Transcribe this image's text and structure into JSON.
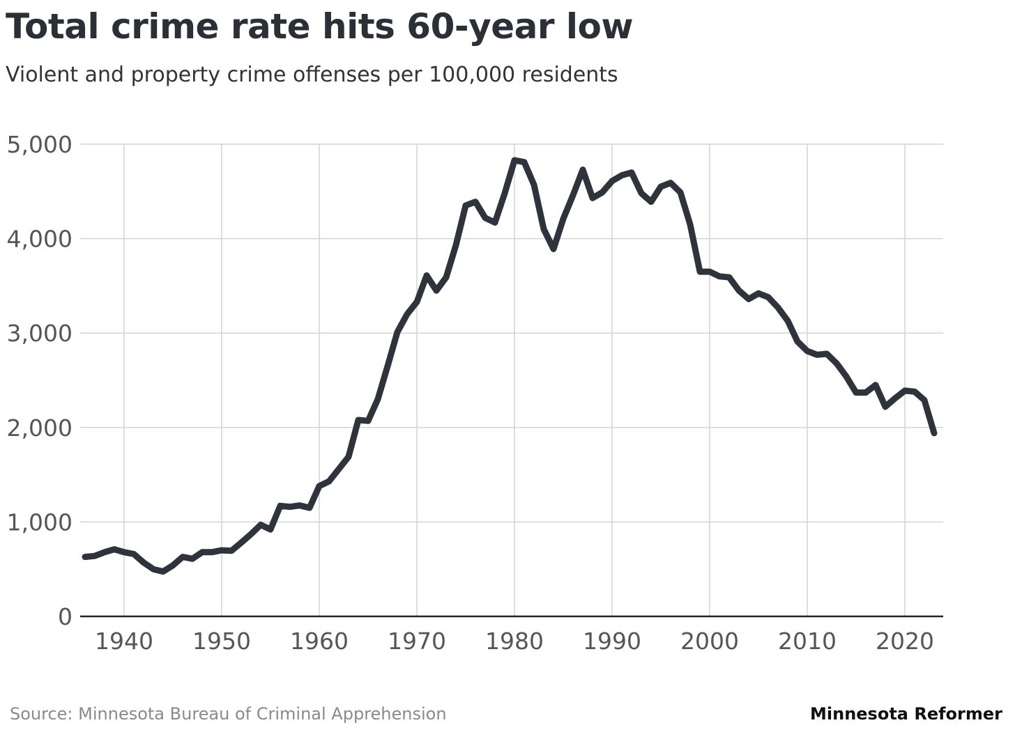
{
  "header": {
    "title": "Total crime rate hits 60-year low",
    "subtitle": "Violent and property crime offenses per 100,000 residents"
  },
  "footer": {
    "source": "Source: Minnesota Bureau of Criminal Apprehension",
    "brand": "Minnesota Reformer"
  },
  "colors": {
    "line": "#2f343c",
    "grid": "#d4d4d4",
    "axis": "#222222",
    "tick_text": "#555555"
  },
  "chart_data": {
    "type": "line",
    "title": "Total crime rate hits 60-year low",
    "subtitle": "Violent and property crime offenses per 100,000 residents",
    "xlabel": "",
    "ylabel": "",
    "xlim": [
      1935,
      2024
    ],
    "ylim": [
      0,
      5000
    ],
    "x_ticks": [
      1940,
      1950,
      1960,
      1970,
      1980,
      1990,
      2000,
      2010,
      2020
    ],
    "x_tick_labels": [
      "1940",
      "1950",
      "1960",
      "1970",
      "1980",
      "1990",
      "2000",
      "2010",
      "2020"
    ],
    "y_ticks": [
      0,
      1000,
      2000,
      3000,
      4000,
      5000
    ],
    "y_tick_labels": [
      "0",
      "1,000",
      "2,000",
      "3,000",
      "4,000",
      "5,000"
    ],
    "grid": true,
    "series": [
      {
        "name": "Total crime rate",
        "x": [
          1936,
          1937,
          1938,
          1939,
          1940,
          1941,
          1942,
          1943,
          1944,
          1945,
          1946,
          1947,
          1948,
          1949,
          1950,
          1951,
          1952,
          1953,
          1954,
          1955,
          1956,
          1957,
          1958,
          1959,
          1960,
          1961,
          1962,
          1963,
          1964,
          1965,
          1966,
          1967,
          1968,
          1969,
          1970,
          1971,
          1972,
          1973,
          1974,
          1975,
          1976,
          1977,
          1978,
          1979,
          1980,
          1981,
          1982,
          1983,
          1984,
          1985,
          1986,
          1987,
          1988,
          1989,
          1990,
          1991,
          1992,
          1993,
          1994,
          1995,
          1996,
          1997,
          1998,
          1999,
          2000,
          2001,
          2002,
          2003,
          2004,
          2005,
          2006,
          2007,
          2008,
          2009,
          2010,
          2011,
          2012,
          2013,
          2014,
          2015,
          2016,
          2017,
          2018,
          2019,
          2020,
          2021,
          2022,
          2023
        ],
        "values": [
          630,
          640,
          680,
          710,
          680,
          660,
          570,
          500,
          475,
          540,
          630,
          610,
          680,
          680,
          700,
          695,
          780,
          870,
          970,
          920,
          1170,
          1160,
          1175,
          1150,
          1380,
          1430,
          1560,
          1690,
          2080,
          2070,
          2300,
          2650,
          3010,
          3200,
          3330,
          3610,
          3450,
          3590,
          3930,
          4350,
          4390,
          4220,
          4170,
          4480,
          4830,
          4810,
          4570,
          4100,
          3890,
          4210,
          4460,
          4730,
          4430,
          4490,
          4610,
          4670,
          4700,
          4480,
          4390,
          4550,
          4590,
          4490,
          4150,
          3650,
          3650,
          3600,
          3590,
          3450,
          3360,
          3420,
          3380,
          3270,
          3130,
          2910,
          2810,
          2770,
          2780,
          2680,
          2540,
          2370,
          2370,
          2450,
          2220,
          2310,
          2390,
          2380,
          2290,
          1940
        ]
      }
    ]
  }
}
